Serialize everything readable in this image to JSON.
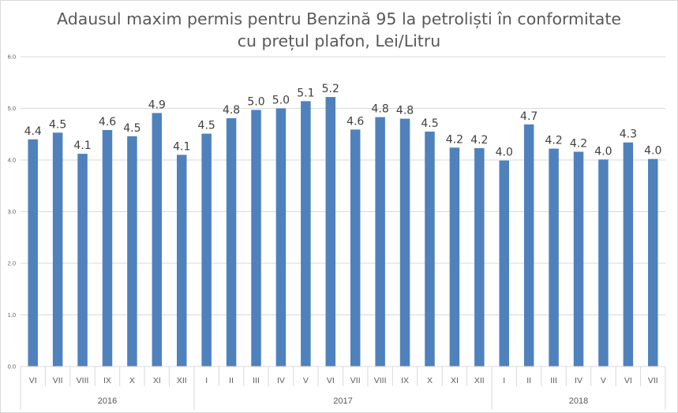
{
  "chart_data": {
    "type": "bar",
    "title": "Adausul maxim permis pentru Benzină 95 la petroliști în conformitate cu prețul plafon, Lei/Litru",
    "title_lines": [
      "Adausul maxim permis pentru Benzină 95 la petroliști în conformitate",
      "cu prețul plafon, Lei/Litru"
    ],
    "categories": [
      "VI",
      "VII",
      "VIII",
      "IX",
      "X",
      "XI",
      "XII",
      "I",
      "II",
      "III",
      "IV",
      "V",
      "VI",
      "VII",
      "VIII",
      "IX",
      "X",
      "XI",
      "XII",
      "I",
      "II",
      "III",
      "IV",
      "V",
      "VI",
      "VII"
    ],
    "groups": [
      {
        "label": "2016",
        "count": 7
      },
      {
        "label": "2017",
        "count": 12
      },
      {
        "label": "2018",
        "count": 7
      }
    ],
    "values": [
      4.4,
      4.53,
      4.12,
      4.58,
      4.46,
      4.91,
      4.1,
      4.51,
      4.81,
      4.97,
      5.0,
      5.14,
      5.22,
      4.59,
      4.83,
      4.8,
      4.55,
      4.24,
      4.23,
      3.99,
      4.69,
      4.22,
      4.16,
      4.01,
      4.34,
      4.02
    ],
    "data_labels": [
      "4.4",
      "4.5",
      "4.1",
      "4.6",
      "4.5",
      "4.9",
      "4.1",
      "4.5",
      "4.8",
      "5.0",
      "5.0",
      "5.1",
      "5.2",
      "4.6",
      "4.8",
      "4.8",
      "4.5",
      "4.2",
      "4.2",
      "4.0",
      "4.7",
      "4.2",
      "4.2",
      "4.0",
      "4.3",
      "4.0"
    ],
    "y_ticks": [
      "0.0",
      "1.0",
      "2.0",
      "3.0",
      "4.0",
      "5.0",
      "6.0"
    ],
    "ylim": [
      0,
      6
    ],
    "bar_color": "#4f81bd",
    "grid": true,
    "legend": "none",
    "xlabel": "",
    "ylabel": ""
  }
}
